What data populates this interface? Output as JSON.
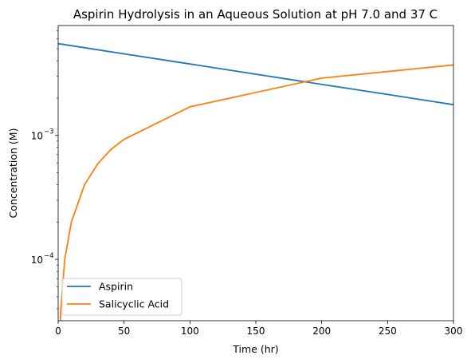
{
  "chart_data": {
    "type": "line",
    "title": "Aspirin Hydrolysis in an Aqueous Solution at pH 7.0 and 37 C",
    "xlabel": "Time (hr)",
    "ylabel": "Concentration (M)",
    "xlim": [
      0,
      300
    ],
    "ylim": [
      3.2e-05,
      0.0077
    ],
    "yscale": "log",
    "x_ticks": [
      {
        "value": 0,
        "label": "0"
      },
      {
        "value": 50,
        "label": "50"
      },
      {
        "value": 100,
        "label": "100"
      },
      {
        "value": 150,
        "label": "150"
      },
      {
        "value": 200,
        "label": "200"
      },
      {
        "value": 250,
        "label": "250"
      },
      {
        "value": 300,
        "label": "300"
      }
    ],
    "y_ticks": [
      {
        "value": 0.0001,
        "base": "10",
        "exp": "−4"
      },
      {
        "value": 0.001,
        "base": "10",
        "exp": "−3"
      }
    ],
    "grid": false,
    "legend_position": "lower left",
    "series": [
      {
        "name": "Aspirin",
        "color": "#1f77b4",
        "x": [
          0,
          50,
          100,
          150,
          200,
          250,
          300
        ],
        "y": [
          0.0055,
          0.00455,
          0.00377,
          0.00312,
          0.00258,
          0.00214,
          0.00177
        ]
      },
      {
        "name": "Salicyclic Acid",
        "color": "#ff7f0e",
        "x": [
          1,
          2,
          5,
          10,
          20,
          30,
          40,
          50,
          100,
          200,
          300
        ],
        "y": [
          2e-05,
          4e-05,
          0.0001,
          0.0002,
          0.0004,
          0.00059,
          0.00077,
          0.00093,
          0.0017,
          0.0029,
          0.0037
        ]
      }
    ]
  }
}
